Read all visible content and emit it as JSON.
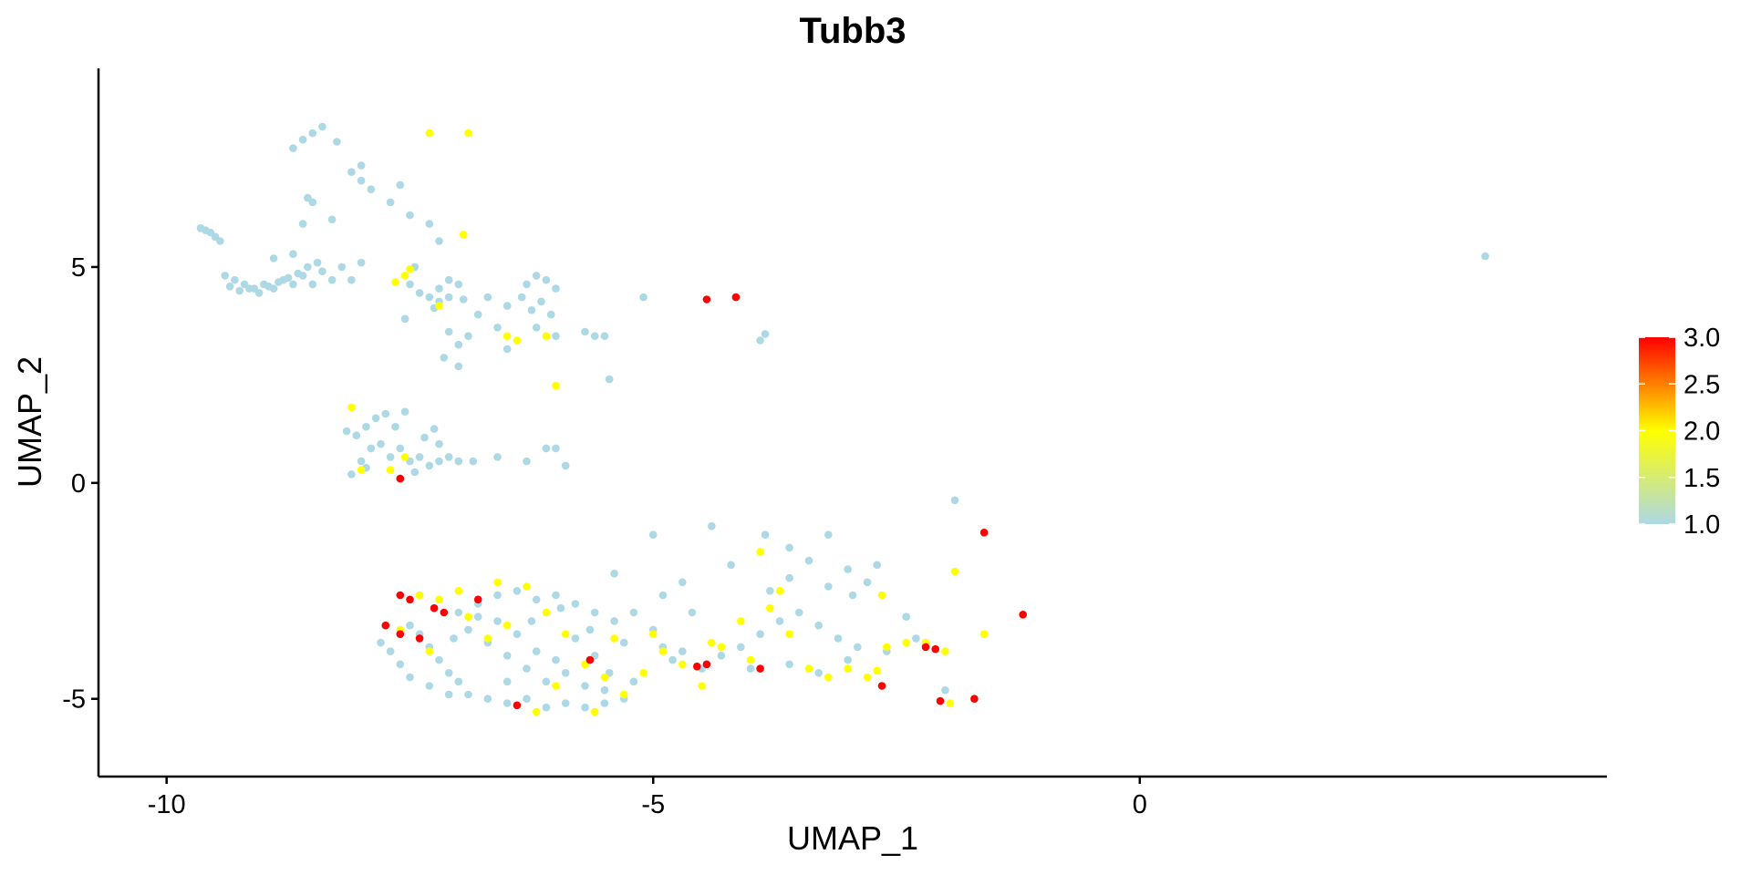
{
  "chart_data": {
    "type": "scatter",
    "title": "Tubb3",
    "xlabel": "UMAP_1",
    "ylabel": "UMAP_2",
    "xlim": [
      -10.7,
      4.8
    ],
    "ylim": [
      -6.8,
      9.6
    ],
    "xticks": [
      -10,
      -5,
      0
    ],
    "yticks": [
      -5,
      0,
      5
    ],
    "grid": false,
    "legend": {
      "type": "colorbar",
      "placement": "right",
      "min": 1.0,
      "max": 3.0,
      "ticks": [
        "1.0",
        "1.5",
        "2.0",
        "2.5",
        "3.0"
      ],
      "colors": [
        "#add8e6",
        "#ffff00",
        "#ff0000"
      ]
    },
    "points": [
      [
        -9.65,
        5.9,
        1
      ],
      [
        -9.55,
        5.8,
        1
      ],
      [
        -9.5,
        5.7,
        1
      ],
      [
        -9.45,
        5.6,
        1
      ],
      [
        -9.6,
        5.85,
        1
      ],
      [
        -9.4,
        4.8,
        1
      ],
      [
        -9.3,
        4.7,
        1
      ],
      [
        -9.2,
        4.6,
        1
      ],
      [
        -9.1,
        4.5,
        1
      ],
      [
        -9.0,
        4.6,
        1
      ],
      [
        -8.9,
        4.5,
        1
      ],
      [
        -8.8,
        4.7,
        1
      ],
      [
        -8.7,
        4.6,
        1
      ],
      [
        -8.6,
        4.8,
        1
      ],
      [
        -8.5,
        4.6,
        1
      ],
      [
        -8.4,
        4.9,
        1
      ],
      [
        -8.3,
        4.7,
        1
      ],
      [
        -8.2,
        5.0,
        1
      ],
      [
        -8.1,
        4.7,
        1
      ],
      [
        -8.0,
        5.1,
        1
      ],
      [
        -9.35,
        4.55,
        1
      ],
      [
        -9.25,
        4.45,
        1
      ],
      [
        -9.15,
        4.5,
        1
      ],
      [
        -9.05,
        4.4,
        1
      ],
      [
        -8.95,
        4.55,
        1
      ],
      [
        -8.85,
        4.65,
        1
      ],
      [
        -8.75,
        4.75,
        1
      ],
      [
        -8.65,
        4.85,
        1
      ],
      [
        -8.55,
        5.0,
        1
      ],
      [
        -8.45,
        5.1,
        1
      ],
      [
        -8.9,
        5.2,
        1
      ],
      [
        -8.7,
        5.3,
        1
      ],
      [
        -8.7,
        7.75,
        1
      ],
      [
        -8.6,
        7.95,
        1
      ],
      [
        -8.5,
        8.1,
        1
      ],
      [
        -8.4,
        8.25,
        1
      ],
      [
        -8.25,
        7.9,
        1
      ],
      [
        -8.1,
        7.2,
        1
      ],
      [
        -8.0,
        7.35,
        1
      ],
      [
        -8.0,
        7.0,
        1
      ],
      [
        -7.9,
        6.8,
        1
      ],
      [
        -7.7,
        6.5,
        1
      ],
      [
        -7.5,
        6.2,
        1
      ],
      [
        -7.3,
        6.0,
        1
      ],
      [
        -7.2,
        5.6,
        1
      ],
      [
        -8.5,
        6.5,
        1
      ],
      [
        -8.3,
        6.1,
        1
      ],
      [
        -8.6,
        6.0,
        1
      ],
      [
        -8.55,
        6.6,
        1
      ],
      [
        -7.6,
        6.9,
        1
      ],
      [
        -7.45,
        5.0,
        1
      ],
      [
        -7.4,
        4.4,
        1
      ],
      [
        -7.3,
        4.3,
        1
      ],
      [
        -7.2,
        4.2,
        1
      ],
      [
        -7.1,
        4.3,
        1
      ],
      [
        -7.0,
        4.6,
        1
      ],
      [
        -7.2,
        4.5,
        1
      ],
      [
        -7.1,
        4.7,
        1
      ],
      [
        -6.95,
        4.25,
        1
      ],
      [
        -7.25,
        4.05,
        1
      ],
      [
        -7.1,
        3.5,
        1
      ],
      [
        -7.0,
        3.2,
        1
      ],
      [
        -7.15,
        2.9,
        1
      ],
      [
        -7.0,
        2.7,
        1
      ],
      [
        -6.9,
        3.4,
        1
      ],
      [
        -6.8,
        3.9,
        1
      ],
      [
        -6.6,
        3.6,
        1
      ],
      [
        -6.5,
        3.1,
        1
      ],
      [
        -6.3,
        4.6,
        1
      ],
      [
        -6.2,
        4.8,
        1
      ],
      [
        -6.1,
        4.7,
        1
      ],
      [
        -6.0,
        4.5,
        1
      ],
      [
        -6.15,
        4.2,
        1
      ],
      [
        -6.05,
        3.9,
        1
      ],
      [
        -6.2,
        3.6,
        1
      ],
      [
        -6.0,
        3.4,
        1
      ],
      [
        -5.7,
        3.5,
        1
      ],
      [
        -5.6,
        3.4,
        1
      ],
      [
        -5.5,
        3.4,
        1
      ],
      [
        -5.45,
        2.4,
        1
      ],
      [
        -6.5,
        4.1,
        1
      ],
      [
        -6.35,
        4.3,
        1
      ],
      [
        -6.25,
        4.0,
        1
      ],
      [
        -6.7,
        4.3,
        1
      ],
      [
        -7.5,
        4.6,
        1
      ],
      [
        -7.55,
        3.8,
        1
      ],
      [
        -5.1,
        4.3,
        1
      ],
      [
        -3.9,
        3.3,
        1
      ],
      [
        -3.85,
        3.45,
        1
      ],
      [
        -8.15,
        1.2,
        1
      ],
      [
        -8.05,
        1.1,
        1
      ],
      [
        -7.95,
        1.3,
        1
      ],
      [
        -7.85,
        1.5,
        1
      ],
      [
        -7.75,
        1.6,
        1
      ],
      [
        -7.65,
        1.3,
        1
      ],
      [
        -7.55,
        1.65,
        1
      ],
      [
        -7.9,
        0.8,
        1
      ],
      [
        -7.8,
        0.9,
        1
      ],
      [
        -7.7,
        0.6,
        1
      ],
      [
        -7.6,
        0.8,
        1
      ],
      [
        -7.5,
        0.5,
        1
      ],
      [
        -7.4,
        0.6,
        1
      ],
      [
        -7.3,
        0.4,
        1
      ],
      [
        -7.2,
        0.5,
        1
      ],
      [
        -7.1,
        0.6,
        1
      ],
      [
        -7.0,
        0.5,
        1
      ],
      [
        -6.85,
        0.5,
        1
      ],
      [
        -6.6,
        0.6,
        1
      ],
      [
        -6.3,
        0.5,
        1
      ],
      [
        -6.1,
        0.8,
        1
      ],
      [
        -6.0,
        0.8,
        1
      ],
      [
        -5.9,
        0.4,
        1
      ],
      [
        -7.2,
        0.9,
        1
      ],
      [
        -7.25,
        1.25,
        1
      ],
      [
        -8.1,
        0.2,
        1
      ],
      [
        -8.0,
        0.5,
        1
      ],
      [
        -7.6,
        0.1,
        1
      ],
      [
        -7.35,
        1.05,
        1
      ],
      [
        -7.45,
        0.25,
        1
      ],
      [
        -7.95,
        0.35,
        1
      ],
      [
        -7.5,
        -3.3,
        1
      ],
      [
        -7.4,
        -3.5,
        1
      ],
      [
        -7.3,
        -3.8,
        1
      ],
      [
        -7.2,
        -4.1,
        1
      ],
      [
        -7.1,
        -4.4,
        1
      ],
      [
        -7.0,
        -4.6,
        1
      ],
      [
        -6.9,
        -4.9,
        1
      ],
      [
        -6.7,
        -5.0,
        1
      ],
      [
        -6.5,
        -5.1,
        1
      ],
      [
        -6.3,
        -5.0,
        1
      ],
      [
        -6.1,
        -5.2,
        1
      ],
      [
        -5.9,
        -5.1,
        1
      ],
      [
        -5.7,
        -5.2,
        1
      ],
      [
        -5.5,
        -5.1,
        1
      ],
      [
        -5.3,
        -5.0,
        1
      ],
      [
        -7.0,
        -3.0,
        1
      ],
      [
        -6.8,
        -2.8,
        1
      ],
      [
        -6.6,
        -2.6,
        1
      ],
      [
        -6.4,
        -2.5,
        1
      ],
      [
        -6.2,
        -2.7,
        1
      ],
      [
        -6.0,
        -2.6,
        1
      ],
      [
        -5.8,
        -2.8,
        1
      ],
      [
        -5.6,
        -3.0,
        1
      ],
      [
        -5.4,
        -3.2,
        1
      ],
      [
        -6.9,
        -3.4,
        1
      ],
      [
        -6.7,
        -3.7,
        1
      ],
      [
        -6.5,
        -4.0,
        1
      ],
      [
        -6.3,
        -4.3,
        1
      ],
      [
        -6.1,
        -4.6,
        1
      ],
      [
        -5.9,
        -4.4,
        1
      ],
      [
        -5.7,
        -4.7,
        1
      ],
      [
        -5.5,
        -4.8,
        1
      ],
      [
        -6.6,
        -3.2,
        1
      ],
      [
        -6.4,
        -3.5,
        1
      ],
      [
        -6.2,
        -3.9,
        1
      ],
      [
        -6.0,
        -4.1,
        1
      ],
      [
        -5.8,
        -3.6,
        1
      ],
      [
        -5.6,
        -4.0,
        1
      ],
      [
        -7.8,
        -3.7,
        1
      ],
      [
        -7.7,
        -3.9,
        1
      ],
      [
        -7.6,
        -4.2,
        1
      ],
      [
        -7.5,
        -4.5,
        1
      ],
      [
        -7.3,
        -4.7,
        1
      ],
      [
        -7.1,
        -4.9,
        1
      ],
      [
        -5.2,
        -3.0,
        1
      ],
      [
        -5.0,
        -3.4,
        1
      ],
      [
        -4.9,
        -3.8,
        1
      ],
      [
        -4.8,
        -4.1,
        1
      ],
      [
        -4.7,
        -3.9,
        1
      ],
      [
        -4.5,
        -4.3,
        1
      ],
      [
        -4.3,
        -4.0,
        1
      ],
      [
        -4.1,
        -3.8,
        1
      ],
      [
        -3.9,
        -3.5,
        1
      ],
      [
        -3.7,
        -3.2,
        1
      ],
      [
        -3.5,
        -3.0,
        1
      ],
      [
        -3.3,
        -3.3,
        1
      ],
      [
        -3.1,
        -3.6,
        1
      ],
      [
        -2.9,
        -3.8,
        1
      ],
      [
        -3.8,
        -2.5,
        1
      ],
      [
        -3.6,
        -2.2,
        1
      ],
      [
        -3.4,
        -1.8,
        1
      ],
      [
        -3.2,
        -2.4,
        1
      ],
      [
        -3.0,
        -2.0,
        1
      ],
      [
        -2.8,
        -2.3,
        1
      ],
      [
        -4.4,
        -1.0,
        1
      ],
      [
        -4.2,
        -1.9,
        1
      ],
      [
        -3.85,
        -1.2,
        1
      ],
      [
        -3.6,
        -1.5,
        1
      ],
      [
        -5.4,
        -2.1,
        1
      ],
      [
        -4.9,
        -2.6,
        1
      ],
      [
        -4.6,
        -3.0,
        1
      ],
      [
        -4.0,
        -4.3,
        1
      ],
      [
        -3.6,
        -4.2,
        1
      ],
      [
        -3.3,
        -4.4,
        1
      ],
      [
        -3.0,
        -4.1,
        1
      ],
      [
        -2.6,
        -3.9,
        1
      ],
      [
        -2.3,
        -3.6,
        1
      ],
      [
        -2.0,
        -4.8,
        1
      ],
      [
        -1.9,
        -0.4,
        1
      ],
      [
        -5.0,
        -1.2,
        1
      ],
      [
        -3.2,
        -1.2,
        1
      ],
      [
        -2.4,
        -3.1,
        1
      ],
      [
        -2.7,
        -1.9,
        1
      ],
      [
        -2.95,
        -2.6,
        1
      ],
      [
        -4.7,
        -2.3,
        1
      ],
      [
        -5.3,
        -3.7,
        1
      ],
      [
        -6.8,
        -3.1,
        1
      ],
      [
        -6.5,
        -4.6,
        1
      ],
      [
        -7.05,
        -3.6,
        1
      ],
      [
        -6.25,
        -3.2,
        1
      ],
      [
        -5.95,
        -2.9,
        1
      ],
      [
        -5.65,
        -3.4,
        1
      ],
      [
        -5.45,
        -4.4,
        1
      ],
      [
        -5.2,
        -4.6,
        1
      ],
      [
        3.55,
        5.25,
        1
      ],
      [
        -7.3,
        8.1,
        2
      ],
      [
        -6.9,
        8.1,
        2
      ],
      [
        -6.95,
        5.75,
        2
      ],
      [
        -7.55,
        4.8,
        2
      ],
      [
        -7.65,
        4.65,
        2
      ],
      [
        -7.5,
        4.95,
        2
      ],
      [
        -7.2,
        4.1,
        2
      ],
      [
        -6.5,
        3.4,
        2
      ],
      [
        -6.4,
        3.3,
        2
      ],
      [
        -6.1,
        3.4,
        2
      ],
      [
        -6.0,
        2.25,
        2
      ],
      [
        -8.1,
        1.75,
        2
      ],
      [
        -8.0,
        0.3,
        2
      ],
      [
        -7.7,
        0.3,
        2
      ],
      [
        -7.55,
        0.6,
        2
      ],
      [
        -7.4,
        -2.6,
        2
      ],
      [
        -7.2,
        -2.7,
        2
      ],
      [
        -7.0,
        -2.5,
        2
      ],
      [
        -6.9,
        -3.1,
        2
      ],
      [
        -6.7,
        -3.6,
        2
      ],
      [
        -6.5,
        -3.3,
        2
      ],
      [
        -6.3,
        -2.4,
        2
      ],
      [
        -6.1,
        -3.0,
        2
      ],
      [
        -5.9,
        -3.5,
        2
      ],
      [
        -5.7,
        -4.2,
        2
      ],
      [
        -5.5,
        -4.5,
        2
      ],
      [
        -5.3,
        -4.9,
        2
      ],
      [
        -5.1,
        -4.4,
        2
      ],
      [
        -4.9,
        -3.9,
        2
      ],
      [
        -4.7,
        -4.2,
        2
      ],
      [
        -4.5,
        -4.7,
        2
      ],
      [
        -4.3,
        -3.8,
        2
      ],
      [
        -4.1,
        -3.2,
        2
      ],
      [
        -3.9,
        -1.6,
        2
      ],
      [
        -3.8,
        -2.9,
        2
      ],
      [
        -3.6,
        -3.5,
        2
      ],
      [
        -3.4,
        -4.3,
        2
      ],
      [
        -3.2,
        -4.5,
        2
      ],
      [
        -3.0,
        -4.3,
        2
      ],
      [
        -2.8,
        -4.5,
        2
      ],
      [
        -2.6,
        -3.8,
        2
      ],
      [
        -2.4,
        -3.7,
        2
      ],
      [
        -2.2,
        -3.7,
        2
      ],
      [
        -2.0,
        -3.9,
        2
      ],
      [
        -1.9,
        -2.05,
        2
      ],
      [
        -1.6,
        -3.5,
        2
      ],
      [
        -1.95,
        -5.1,
        2
      ],
      [
        -2.7,
        -4.35,
        2
      ],
      [
        -3.7,
        -2.5,
        2
      ],
      [
        -5.0,
        -3.5,
        2
      ],
      [
        -5.4,
        -3.6,
        2
      ],
      [
        -6.0,
        -4.7,
        2
      ],
      [
        -6.6,
        -2.3,
        2
      ],
      [
        -7.6,
        -3.4,
        2
      ],
      [
        -7.3,
        -3.9,
        2
      ],
      [
        -5.6,
        -5.3,
        2
      ],
      [
        -6.2,
        -5.3,
        2
      ],
      [
        -4.4,
        -3.7,
        2
      ],
      [
        -4.0,
        -4.1,
        2
      ],
      [
        -2.65,
        -2.6,
        2
      ],
      [
        -4.45,
        4.25,
        3
      ],
      [
        -4.15,
        4.3,
        3
      ],
      [
        -7.6,
        0.1,
        3
      ],
      [
        -7.6,
        -2.6,
        3
      ],
      [
        -7.5,
        -2.7,
        3
      ],
      [
        -7.25,
        -2.9,
        3
      ],
      [
        -7.15,
        -3.0,
        3
      ],
      [
        -6.8,
        -2.7,
        3
      ],
      [
        -7.75,
        -3.3,
        3
      ],
      [
        -7.6,
        -3.5,
        3
      ],
      [
        -7.4,
        -3.6,
        3
      ],
      [
        -6.4,
        -5.15,
        3
      ],
      [
        -5.65,
        -4.1,
        3
      ],
      [
        -4.55,
        -4.25,
        3
      ],
      [
        -4.45,
        -4.2,
        3
      ],
      [
        -3.9,
        -4.3,
        3
      ],
      [
        -2.65,
        -4.7,
        3
      ],
      [
        -2.2,
        -3.8,
        3
      ],
      [
        -2.1,
        -3.85,
        3
      ],
      [
        -2.05,
        -5.05,
        3
      ],
      [
        -1.7,
        -5.0,
        3
      ],
      [
        -1.6,
        -1.15,
        3
      ],
      [
        -1.2,
        -3.05,
        3
      ]
    ]
  }
}
